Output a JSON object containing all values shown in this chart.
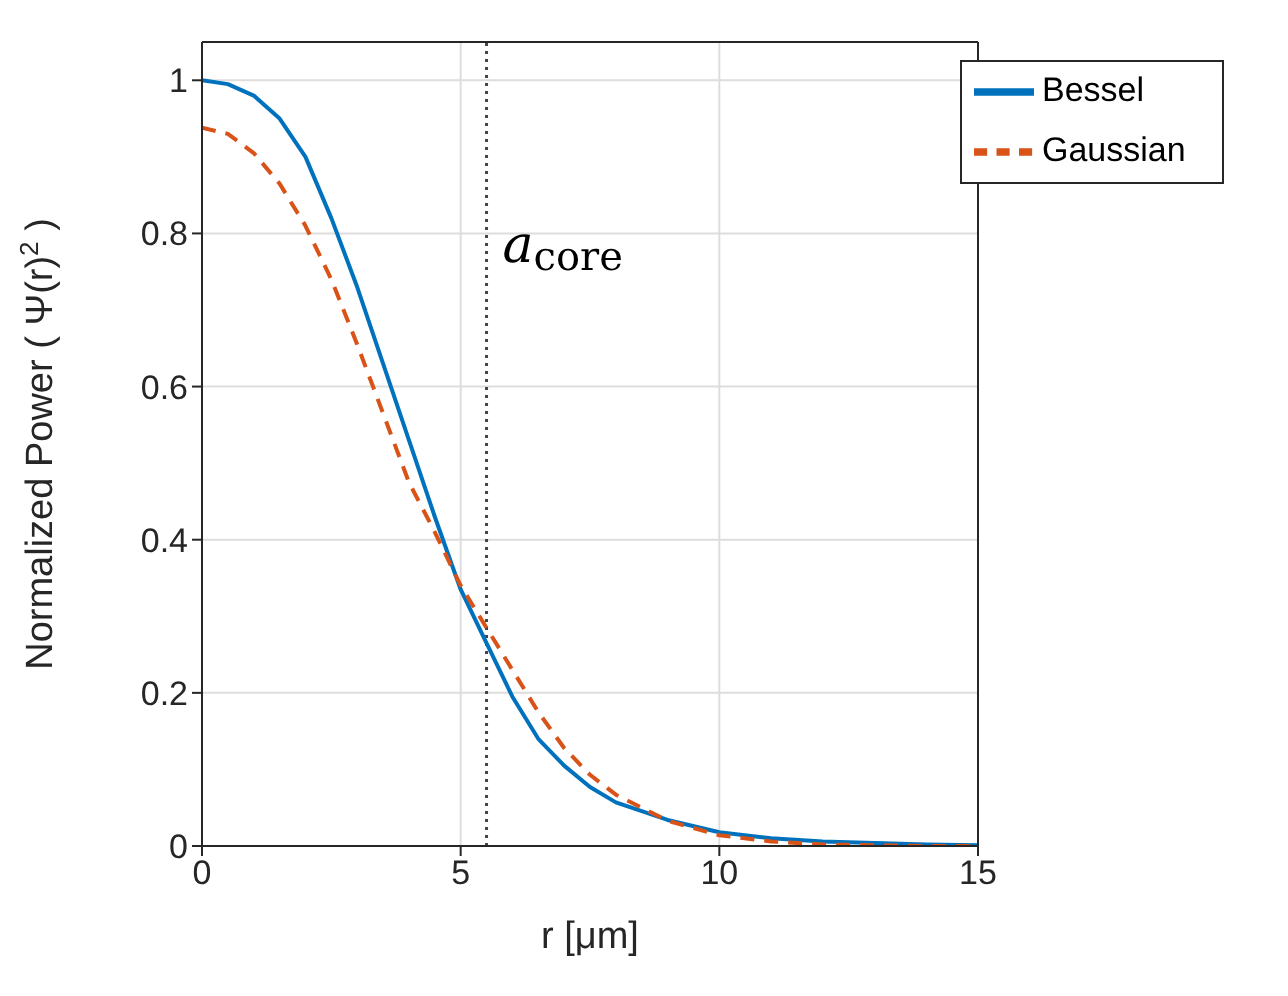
{
  "chart_data": {
    "type": "line",
    "xlabel": "r [μm]",
    "ylabel": "Normalized Power ( Ψ(r)$^{2}$ )",
    "x": [
      0,
      0.5,
      1,
      1.5,
      2,
      2.5,
      3,
      3.5,
      4,
      4.5,
      5,
      5.5,
      6,
      6.5,
      7,
      7.5,
      8,
      9,
      10,
      11,
      12,
      13,
      14,
      15
    ],
    "series": [
      {
        "name": "Bessel",
        "color": "#0072bd",
        "line_style": "solid",
        "values": [
          1,
          0.995,
          0.98,
          0.95,
          0.9,
          0.82,
          0.73,
          0.63,
          0.53,
          0.43,
          0.335,
          0.265,
          0.195,
          0.14,
          0.105,
          0.077,
          0.057,
          0.034,
          0.018,
          0.01,
          0.006,
          0.004,
          0.002,
          0.001
        ]
      },
      {
        "name": "Gaussian",
        "color": "#d95319",
        "line_style": "dashed",
        "values": [
          0.938,
          0.93,
          0.905,
          0.865,
          0.81,
          0.74,
          0.655,
          0.565,
          0.475,
          0.41,
          0.34,
          0.285,
          0.23,
          0.175,
          0.128,
          0.093,
          0.067,
          0.033,
          0.014,
          0.006,
          0.002,
          0.001,
          0,
          0
        ]
      }
    ],
    "xlim": [
      0,
      15
    ],
    "xticks": [
      0,
      5,
      10,
      15
    ],
    "ylim": [
      0,
      1.05
    ],
    "yticks": [
      0,
      0.2,
      0.4,
      0.6,
      0.8,
      1
    ],
    "ref_lines": [
      {
        "axis": "x",
        "value": 5.5,
        "label": "a$_{core}$",
        "color": "#444444",
        "line_style": "dotted"
      }
    ],
    "grid": true,
    "legend": "top right",
    "marker": "none"
  }
}
